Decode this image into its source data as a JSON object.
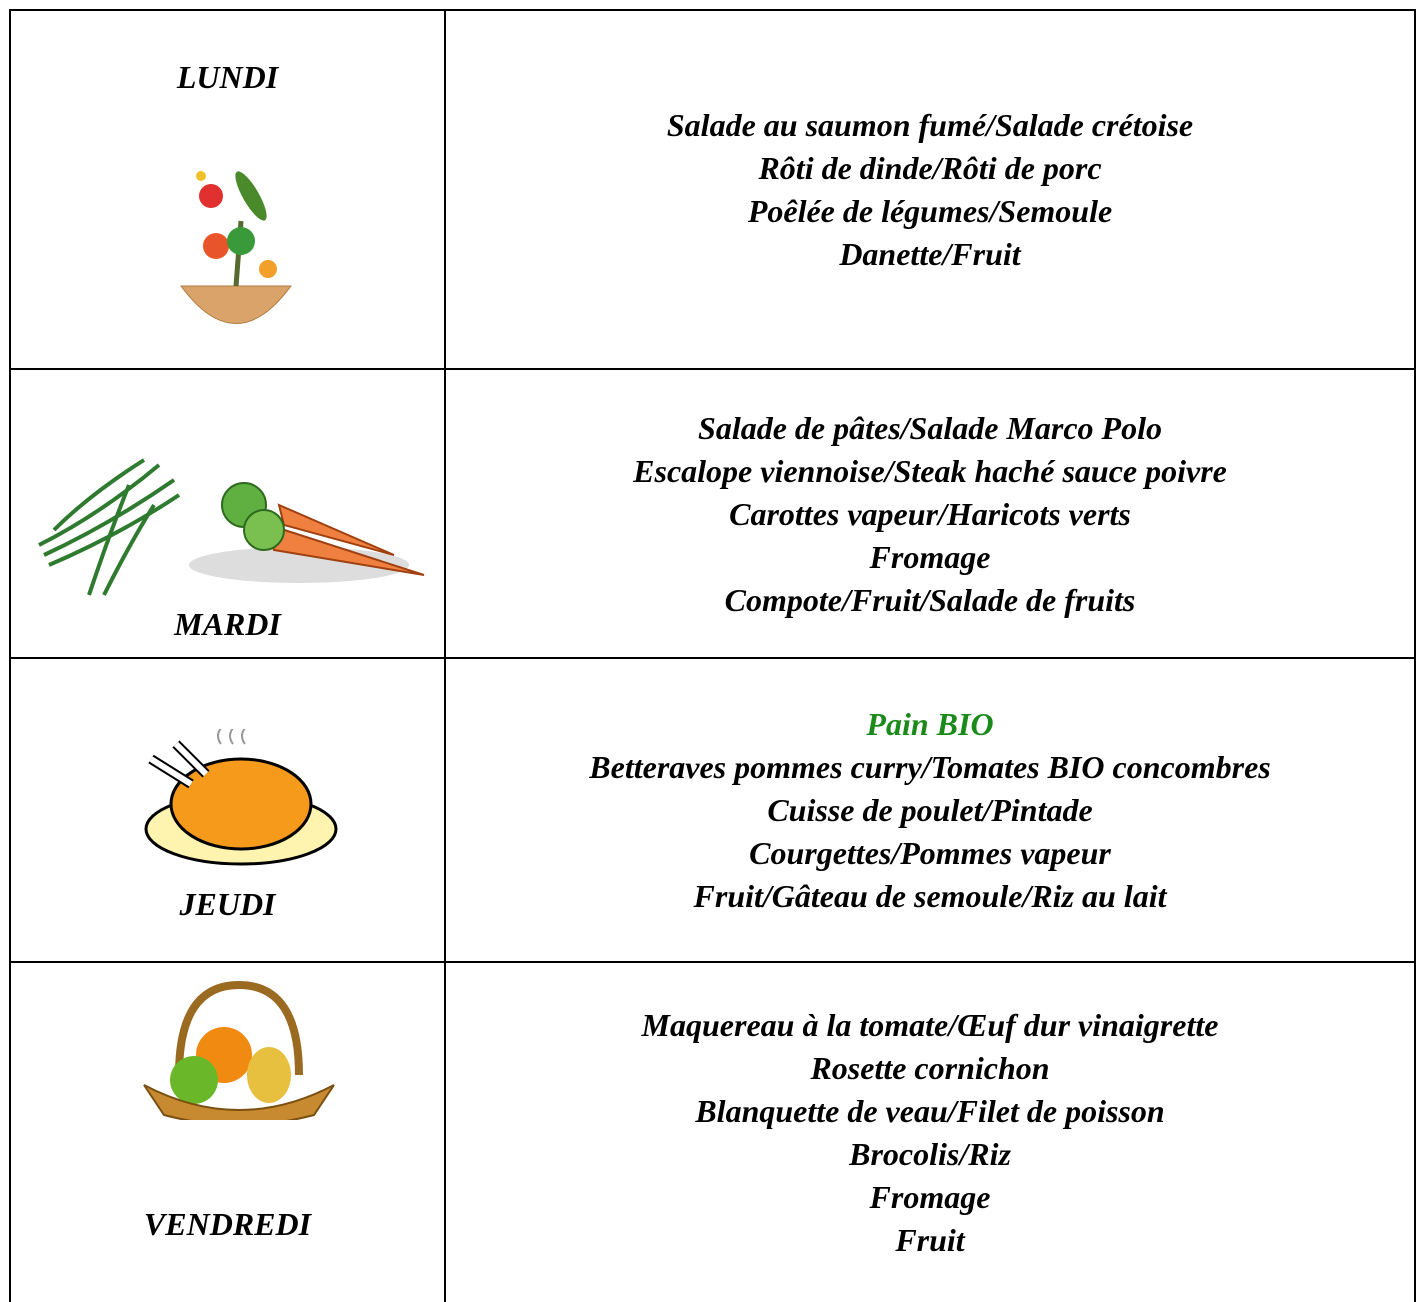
{
  "days": [
    {
      "day": "LUNDI",
      "menu": [
        "Salade au saumon fumé/Salade crétoise",
        "Rôti de dinde/Rôti de porc",
        "Poêlée de légumes/Semoule",
        "Danette/Fruit"
      ]
    },
    {
      "day": "MARDI",
      "menu": [
        "Salade de pâtes/Salade Marco Polo",
        "Escalope viennoise/Steak haché sauce poivre",
        "Carottes vapeur/Haricots verts",
        "Fromage",
        "Compote/Fruit/Salade de fruits"
      ]
    },
    {
      "day": "JEUDI",
      "note": "Pain BIO",
      "menu": [
        "Betteraves pommes curry/Tomates BIO concombres",
        "Cuisse de poulet/Pintade",
        "Courgettes/Pommes vapeur",
        "Fruit/Gâteau de semoule/Riz au lait"
      ]
    },
    {
      "day": "VENDREDI",
      "menu": [
        "Maquereau à la tomate/Œuf dur vinaigrette",
        "Rosette cornichon",
        "Blanquette de veau/Filet de poisson",
        "Brocolis/Riz",
        "Fromage",
        "Fruit"
      ]
    }
  ]
}
